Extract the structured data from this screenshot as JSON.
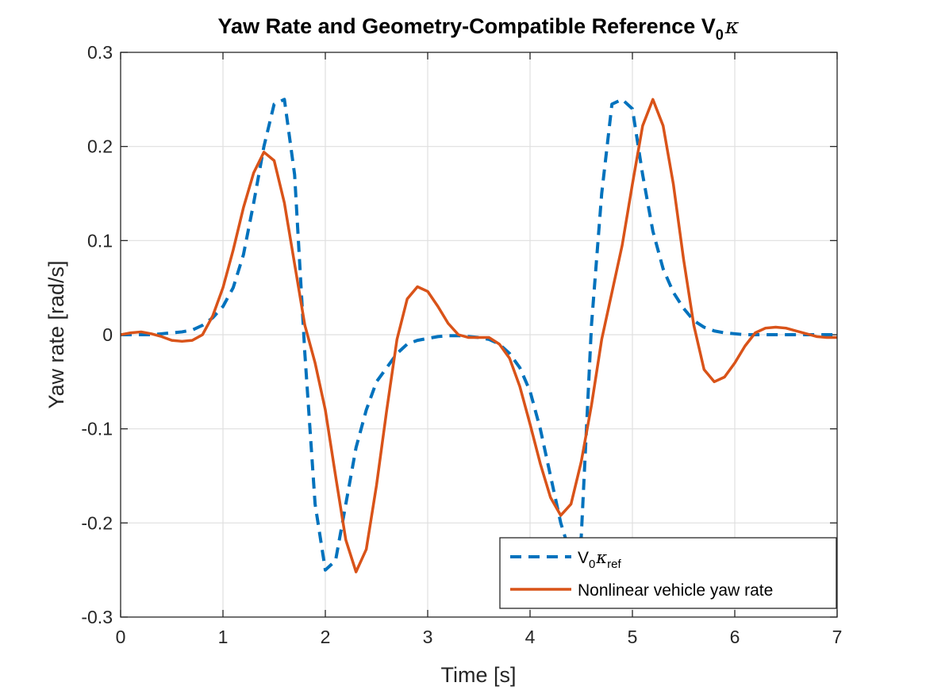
{
  "chart_data": {
    "type": "line",
    "title": "Yaw Rate and Geometry-Compatible Reference V",
    "title_sub": "0",
    "title_kappa": "κ",
    "xlabel": "Time [s]",
    "ylabel": "Yaw rate [rad/s]",
    "xlim": [
      0,
      7
    ],
    "ylim": [
      -0.3,
      0.3
    ],
    "x_ticks": [
      0,
      1,
      2,
      3,
      4,
      5,
      6,
      7
    ],
    "x_tick_labels": [
      "0",
      "1",
      "2",
      "3",
      "4",
      "5",
      "6",
      "7"
    ],
    "y_ticks": [
      -0.3,
      -0.2,
      -0.1,
      0,
      0.1,
      0.2,
      0.3
    ],
    "y_tick_labels": [
      "-0.3",
      "-0.2",
      "-0.1",
      "0",
      "0.1",
      "0.2",
      "0.3"
    ],
    "grid": true,
    "legend_position": "bottom-right",
    "x": [
      0,
      0.1,
      0.2,
      0.3,
      0.4,
      0.5,
      0.6,
      0.7,
      0.8,
      0.9,
      1.0,
      1.1,
      1.2,
      1.3,
      1.4,
      1.5,
      1.6,
      1.7,
      1.8,
      1.9,
      2.0,
      2.1,
      2.2,
      2.3,
      2.4,
      2.5,
      2.6,
      2.7,
      2.8,
      2.9,
      3.0,
      3.1,
      3.2,
      3.3,
      3.4,
      3.5,
      3.6,
      3.7,
      3.8,
      3.9,
      4.0,
      4.1,
      4.2,
      4.3,
      4.4,
      4.5,
      4.6,
      4.7,
      4.8,
      4.9,
      5.0,
      5.1,
      5.2,
      5.3,
      5.4,
      5.5,
      5.6,
      5.7,
      5.8,
      5.9,
      6.0,
      6.1,
      6.2,
      6.3,
      6.4,
      6.5,
      6.6,
      6.7,
      6.8,
      6.9,
      7.0
    ],
    "series": [
      {
        "name": "V",
        "name_sub": "0",
        "name_kappa": "κ",
        "name_kappa_sub": "ref",
        "color": "#0072bd",
        "style": "dashed",
        "values": [
          0,
          0,
          0,
          0,
          0.001,
          0.002,
          0.003,
          0.005,
          0.01,
          0.018,
          0.03,
          0.05,
          0.085,
          0.14,
          0.2,
          0.245,
          0.25,
          0.17,
          -0.02,
          -0.18,
          -0.25,
          -0.24,
          -0.18,
          -0.12,
          -0.08,
          -0.05,
          -0.035,
          -0.02,
          -0.01,
          -0.006,
          -0.004,
          -0.002,
          -0.001,
          -0.001,
          -0.002,
          -0.003,
          -0.005,
          -0.01,
          -0.02,
          -0.035,
          -0.06,
          -0.1,
          -0.15,
          -0.2,
          -0.235,
          -0.215,
          0.01,
          0.15,
          0.245,
          0.25,
          0.24,
          0.17,
          0.11,
          0.07,
          0.045,
          0.028,
          0.015,
          0.008,
          0.004,
          0.002,
          0.001,
          0,
          0,
          0,
          0,
          0,
          0,
          0,
          0,
          0,
          0
        ]
      },
      {
        "name": "Nonlinear vehicle yaw rate",
        "color": "#d95319",
        "style": "solid",
        "values": [
          0,
          0.002,
          0.003,
          0.001,
          -0.002,
          -0.006,
          -0.007,
          -0.006,
          0,
          0.02,
          0.05,
          0.09,
          0.135,
          0.172,
          0.194,
          0.185,
          0.14,
          0.075,
          0.01,
          -0.03,
          -0.08,
          -0.15,
          -0.218,
          -0.252,
          -0.228,
          -0.16,
          -0.08,
          -0.005,
          0.038,
          0.051,
          0.046,
          0.03,
          0.012,
          0,
          -0.003,
          -0.003,
          -0.003,
          -0.01,
          -0.025,
          -0.055,
          -0.095,
          -0.137,
          -0.173,
          -0.192,
          -0.18,
          -0.135,
          -0.075,
          -0.005,
          0.045,
          0.095,
          0.16,
          0.222,
          0.25,
          0.222,
          0.16,
          0.08,
          0.01,
          -0.037,
          -0.05,
          -0.045,
          -0.03,
          -0.012,
          0.002,
          0.007,
          0.008,
          0.007,
          0.004,
          0.001,
          -0.002,
          -0.003,
          -0.003
        ]
      }
    ]
  }
}
